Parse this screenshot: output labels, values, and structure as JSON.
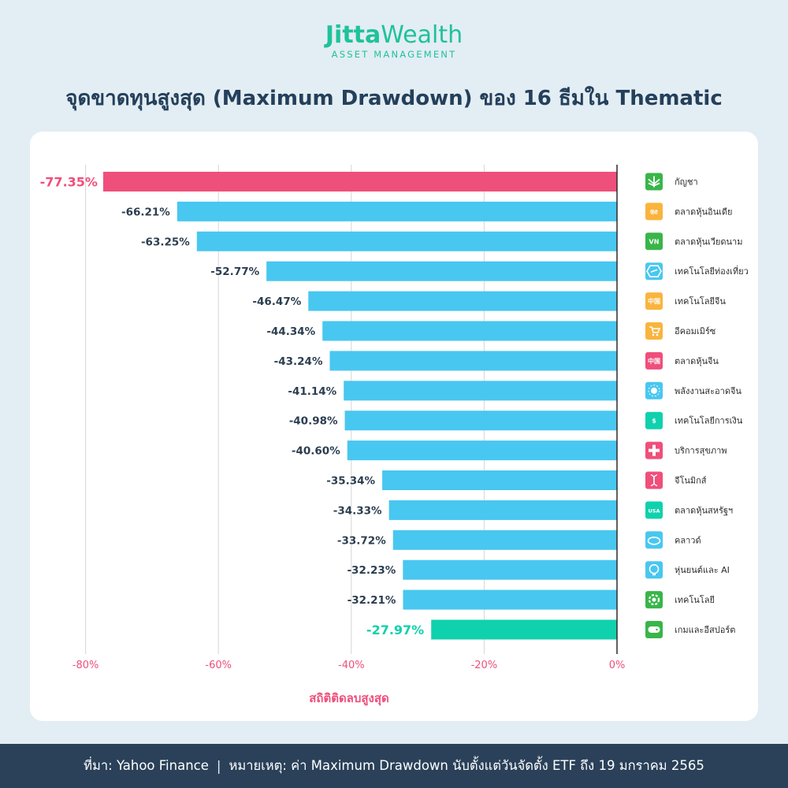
{
  "brand": {
    "name": "Jitta",
    "sub": "Wealth",
    "tagline": "ASSET MANAGEMENT"
  },
  "title": "จุดขาดทุนสูงสุด (Maximum Drawdown) ของ 16 ธีมใน Thematic",
  "colors": {
    "highlight_neg": "#ef4f7b",
    "bar": "#48c7f0",
    "highlight_pos": "#10d1ad",
    "grid": "#d6d6d6",
    "axis": "#2b2b2b",
    "text": "#2c3e50",
    "tick": "#ef4f7b"
  },
  "chart_data": {
    "type": "bar",
    "orientation": "horizontal",
    "title": "จุดขาดทุนสูงสุด (Maximum Drawdown) ของ 16 ธีมใน Thematic",
    "xlabel": "สถิติติดลบสูงสุด",
    "ylabel": "",
    "xlim": [
      -80,
      0
    ],
    "xticks": [
      -80,
      -60,
      -40,
      -20,
      0
    ],
    "xtick_labels": [
      "-80%",
      "-60%",
      "-40%",
      "-20%",
      "0%"
    ],
    "categories": [
      "กัญชา",
      "ตลาดหุ้นอินเดีย",
      "ตลาดหุ้นเวียดนาม",
      "เทคโนโลยีท่องเที่ยว",
      "เทคโนโลยีจีน",
      "อีคอมเมิร์ซ",
      "ตลาดหุ้นจีน",
      "พลังงานสะอาดจีน",
      "เทคโนโลยีการเงิน",
      "บริการสุขภาพ",
      "จีโนมิกส์",
      "ตลาดหุ้นสหรัฐฯ",
      "คลาวด์",
      "หุ่นยนต์และ AI",
      "เทคโนโลยี",
      "เกมและอีสปอร์ต"
    ],
    "values": [
      -77.35,
      -66.21,
      -63.25,
      -52.77,
      -46.47,
      -44.34,
      -43.24,
      -41.14,
      -40.98,
      -40.6,
      -35.34,
      -34.33,
      -33.72,
      -32.23,
      -32.21,
      -27.97
    ],
    "value_labels": [
      "-77.35%",
      "-66.21%",
      "-63.25%",
      "-52.77%",
      "-46.47%",
      "-44.34%",
      "-43.24%",
      "-41.14%",
      "-40.98%",
      "-40.60%",
      "-35.34%",
      "-34.33%",
      "-33.72%",
      "-32.23%",
      "-32.21%",
      "-27.97%"
    ],
    "icons": [
      "cannabis-icon",
      "india-hindi-icon",
      "vietnam-flag-icon",
      "plane-icon",
      "china-tech-icon",
      "cart-icon",
      "china-flag-icon",
      "solar-icon",
      "dollar-icon",
      "medical-cross-icon",
      "dna-icon",
      "usa-icon",
      "cloud-icon",
      "robot-head-icon",
      "gear-icon",
      "gamepad-icon"
    ],
    "icon_colors": [
      "#39b54a",
      "#f9b43d",
      "#39b54a",
      "#48c7f0",
      "#f9b43d",
      "#f9b43d",
      "#ef4f7b",
      "#48c7f0",
      "#10d1ad",
      "#ef4f7b",
      "#ef4f7b",
      "#10d1ad",
      "#48c7f0",
      "#48c7f0",
      "#39b54a",
      "#39b54a"
    ],
    "icon_glyphs": [
      "",
      "हिंदी",
      "VN",
      "",
      "中国",
      "",
      "中国",
      "",
      "$",
      "",
      "",
      "USA",
      "",
      "",
      "",
      ""
    ]
  },
  "footer": {
    "source": "ที่มา: Yahoo Finance",
    "separator": "|",
    "note": "หมายเหตุ: ค่า Maximum Drawdown นับตั้งแต่วันจัดตั้ง ETF ถึง 19 มกราคม 2565"
  }
}
